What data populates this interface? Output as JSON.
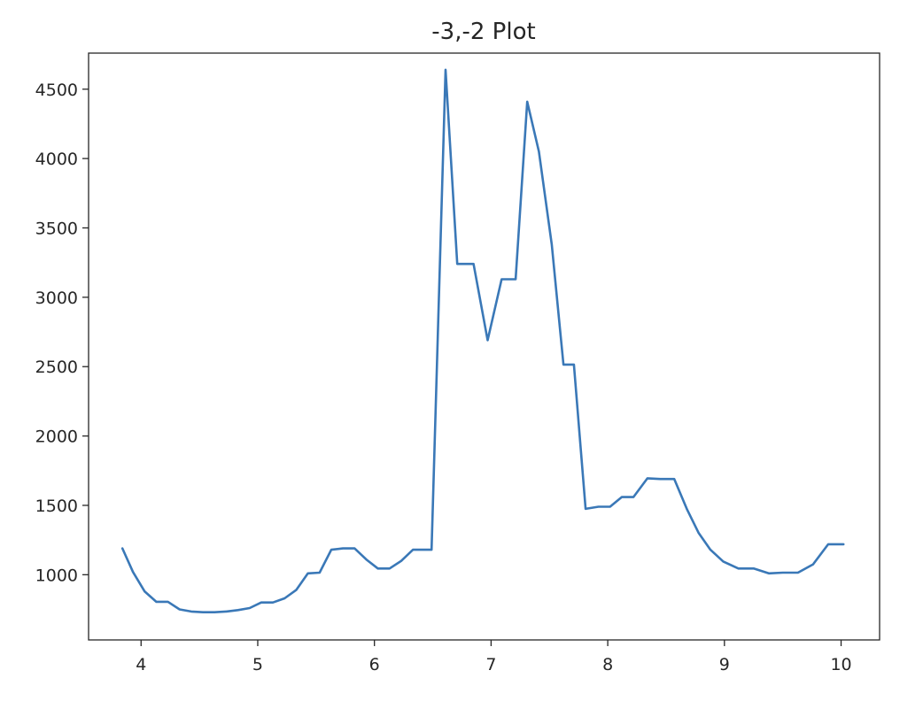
{
  "chart_data": {
    "type": "line",
    "title": "-3,-2 Plot",
    "xlabel": "",
    "ylabel": "",
    "xlim": [
      3.55,
      10.33
    ],
    "ylim": [
      530,
      4760
    ],
    "xticks": [
      4,
      5,
      6,
      7,
      8,
      9,
      10
    ],
    "yticks": [
      1000,
      1500,
      2000,
      2500,
      3000,
      3500,
      4000,
      4500
    ],
    "grid": false,
    "line_color": "#3a78b7",
    "series": [
      {
        "x": [
          3.84,
          3.93,
          4.03,
          4.13,
          4.23,
          4.33,
          4.43,
          4.53,
          4.63,
          4.73,
          4.83,
          4.93,
          5.03,
          5.13,
          5.23,
          5.33,
          5.43,
          5.53,
          5.63,
          5.73,
          5.83,
          5.93,
          6.03,
          6.13,
          6.23,
          6.33,
          6.43,
          6.49,
          6.61,
          6.71,
          6.85,
          6.97,
          7.09,
          7.21,
          7.31,
          7.41,
          7.52,
          7.62,
          7.71,
          7.81,
          7.92,
          8.02,
          8.12,
          8.22,
          8.34,
          8.45,
          8.57,
          8.68,
          8.78,
          8.88,
          8.99,
          9.12,
          9.25,
          9.38,
          9.5,
          9.63,
          9.76,
          9.89,
          10.02
        ],
        "y": [
          1190,
          1020,
          880,
          805,
          805,
          750,
          735,
          730,
          730,
          735,
          745,
          760,
          800,
          800,
          830,
          890,
          1010,
          1015,
          1180,
          1190,
          1190,
          1110,
          1045,
          1045,
          1100,
          1180,
          1180,
          1180,
          4640,
          3240,
          3240,
          2690,
          3130,
          3130,
          4410,
          4050,
          3380,
          2515,
          2515,
          1475,
          1490,
          1490,
          1560,
          1560,
          1695,
          1690,
          1690,
          1470,
          1300,
          1180,
          1095,
          1045,
          1045,
          1010,
          1015,
          1015,
          1075,
          1220,
          1220
        ]
      }
    ]
  }
}
